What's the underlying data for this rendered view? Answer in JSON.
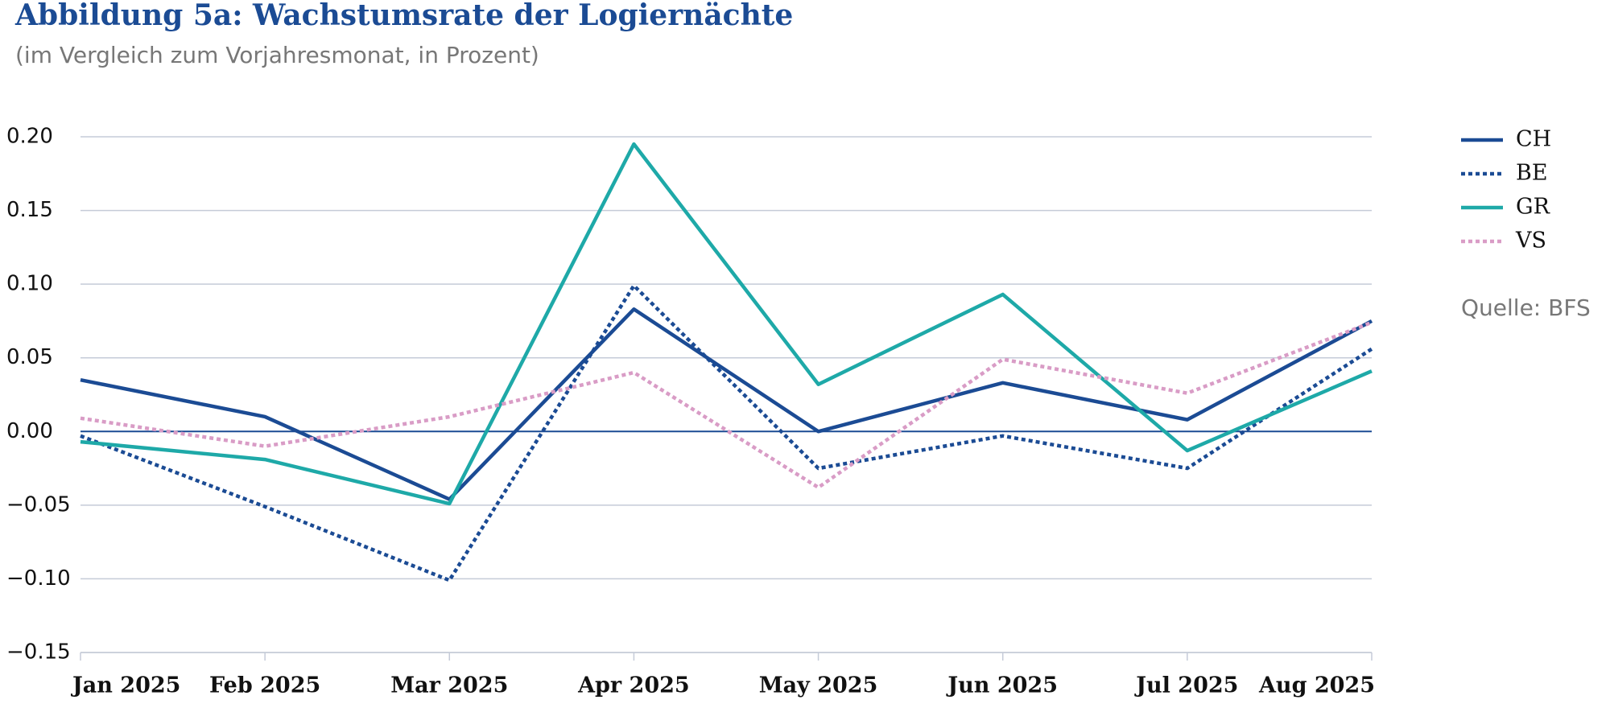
{
  "chart_data": {
    "type": "line",
    "title": "Abbildung 5a: Wachstumsrate der Logiernächte",
    "subtitle": "(im Vergleich zum Vorjahresmonat, in Prozent)",
    "source": "Quelle: BFS",
    "categories": [
      "Jan 2025",
      "Feb 2025",
      "Mar 2025",
      "Apr 2025",
      "May 2025",
      "Jun 2025",
      "Jul 2025",
      "Aug 2025"
    ],
    "series": [
      {
        "name": "CH",
        "color": "#1b4b94",
        "dash": "solid",
        "values": [
          0.035,
          0.01,
          -0.046,
          0.083,
          0.0,
          0.033,
          0.008,
          0.075
        ]
      },
      {
        "name": "BE",
        "color": "#1b4b94",
        "dash": "dotted",
        "values": [
          -0.003,
          -0.051,
          -0.101,
          0.099,
          -0.025,
          -0.003,
          -0.025,
          0.056
        ]
      },
      {
        "name": "GR",
        "color": "#1ea9a8",
        "dash": "solid",
        "values": [
          -0.007,
          -0.019,
          -0.049,
          0.195,
          0.032,
          0.093,
          -0.013,
          0.041
        ]
      },
      {
        "name": "VS",
        "color": "#d99cc6",
        "dash": "dotted",
        "values": [
          0.009,
          -0.01,
          0.01,
          0.04,
          -0.038,
          0.049,
          0.026,
          0.074
        ]
      }
    ],
    "ylim": [
      -0.15,
      0.2
    ],
    "yticks": [
      {
        "value": 0.2,
        "label": "0.20"
      },
      {
        "value": 0.15,
        "label": "0.15"
      },
      {
        "value": 0.1,
        "label": "0.10"
      },
      {
        "value": 0.05,
        "label": "0.05"
      },
      {
        "value": 0,
        "label": "0.00"
      },
      {
        "value": -0.05,
        "label": "−0.05"
      },
      {
        "value": -0.1,
        "label": "−0.10"
      },
      {
        "value": -0.15,
        "label": "−0.15"
      }
    ],
    "grid": true
  }
}
